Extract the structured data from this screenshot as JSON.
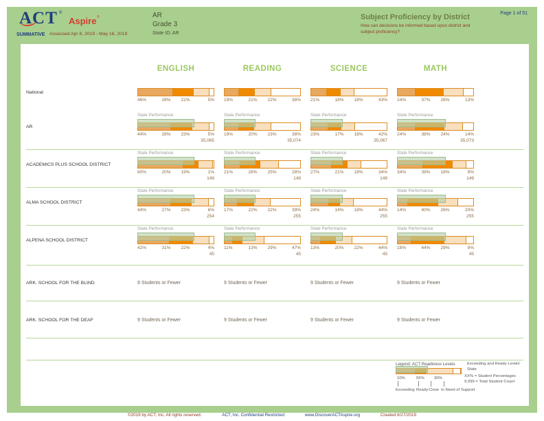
{
  "header": {
    "logo_act": "ACT",
    "logo_reg": "®",
    "logo_aspire": "Aspire",
    "aspire_reg": "®",
    "summative": "SUMMATIVE",
    "assessed": "Assessed Apr 8, 2019 - May 16, 2019",
    "region": "AR",
    "grade": "Grade 3",
    "state_id": "State ID: AR",
    "title": "Subject Proficiency by District",
    "subtitle": "How can decisions be informed based upon district and subject proficiency?",
    "page_info": "Page 1 of 51"
  },
  "colors": {
    "page_green": "#A8CF8E",
    "subject_green": "#9BC85E",
    "exceeding": "#E9A860",
    "ready": "#F08A00",
    "close": "#F8DFBD",
    "support": "#FFFFFF",
    "bar_border": "#DB8A1F",
    "overlay_green": "#B5D0A9",
    "percent_text": "#8A6A3F"
  },
  "chart_data": {
    "type": "bar",
    "stacked": true,
    "legend_position": "bottom-right",
    "levels": [
      "Exceeding",
      "Ready",
      "Close",
      "In Need of Support"
    ],
    "subjects": [
      "ENGLISH",
      "READING",
      "SCIENCE",
      "MATH"
    ],
    "state_performance_label": "State Performance",
    "rows": [
      {
        "label": "National",
        "type": "bars",
        "show_state": false,
        "subjects": [
          {
            "values": [
              46,
              28,
              21,
              5
            ]
          },
          {
            "values": [
              19,
              21,
              22,
              38
            ]
          },
          {
            "values": [
              21,
              18,
              18,
              43
            ]
          },
          {
            "values": [
              24,
              37,
              26,
              13
            ]
          }
        ]
      },
      {
        "label": "AR",
        "type": "bars",
        "show_state": true,
        "subjects": [
          {
            "values": [
              44,
              28,
              23,
              5
            ],
            "count": "35,065"
          },
          {
            "values": [
              19,
              20,
              23,
              38
            ],
            "count": "35,074"
          },
          {
            "values": [
              23,
              17,
              18,
              42
            ],
            "count": "35,067"
          },
          {
            "values": [
              24,
              38,
              24,
              14
            ],
            "count": "35,073"
          }
        ]
      },
      {
        "label": "ACADEMICS PLUS SCHOOL DISTRICT",
        "type": "bars",
        "show_state": true,
        "subjects": [
          {
            "values": [
              60,
              20,
              19,
              1
            ],
            "count": "149"
          },
          {
            "values": [
              21,
              26,
              25,
              28
            ],
            "count": "149"
          },
          {
            "values": [
              27,
              21,
              18,
              34
            ],
            "count": "149"
          },
          {
            "values": [
              34,
              39,
              18,
              9
            ],
            "count": "149"
          }
        ]
      },
      {
        "label": "ALMA SCHOOL DISTRICT",
        "type": "bars",
        "show_state": true,
        "subjects": [
          {
            "values": [
              44,
              27,
              23,
              6
            ],
            "count": "254"
          },
          {
            "values": [
              17,
              22,
              22,
              39
            ],
            "count": "255"
          },
          {
            "values": [
              24,
              14,
              18,
              44
            ],
            "count": "255"
          },
          {
            "values": [
              14,
              40,
              26,
              20
            ],
            "count": "255"
          }
        ]
      },
      {
        "label": "ALPENA SCHOOL DISTRICT",
        "type": "bars",
        "show_state": true,
        "subjects": [
          {
            "values": [
              42,
              31,
              22,
              4
            ],
            "count": "45"
          },
          {
            "values": [
              11,
              13,
              29,
              47
            ],
            "count": "45"
          },
          {
            "values": [
              13,
              20,
              22,
              44
            ],
            "count": "45"
          },
          {
            "values": [
              18,
              44,
              29,
              9
            ],
            "count": "45"
          }
        ]
      },
      {
        "label": "ARK. SCHOOL FOR THE BLIND",
        "type": "text",
        "message": "9 Students or Fewer"
      },
      {
        "label": "ARK. SCHOOL FOR THE DEAF",
        "type": "text",
        "message": "9 Students or Fewer"
      }
    ]
  },
  "legend": {
    "title": "Legend: ACT Readiness Levels",
    "sample_values": [
      "10%",
      "55%",
      "30%"
    ],
    "levels": [
      "Exceeding",
      "Ready",
      "Close",
      "In Need of Support"
    ],
    "note_state": "Exceeding and Ready Levels' State",
    "note_pct": "XX% = Student Percentages",
    "note_count": "9,999 = Total Student Count"
  },
  "footer": {
    "copyright": "©2019 by ACT, Inc. All rights reserved.",
    "confidential": "ACT, Inc. Confidential Restricted",
    "url": "www.DiscoverACTAspire.org",
    "created": "Created 6/27/2019"
  }
}
